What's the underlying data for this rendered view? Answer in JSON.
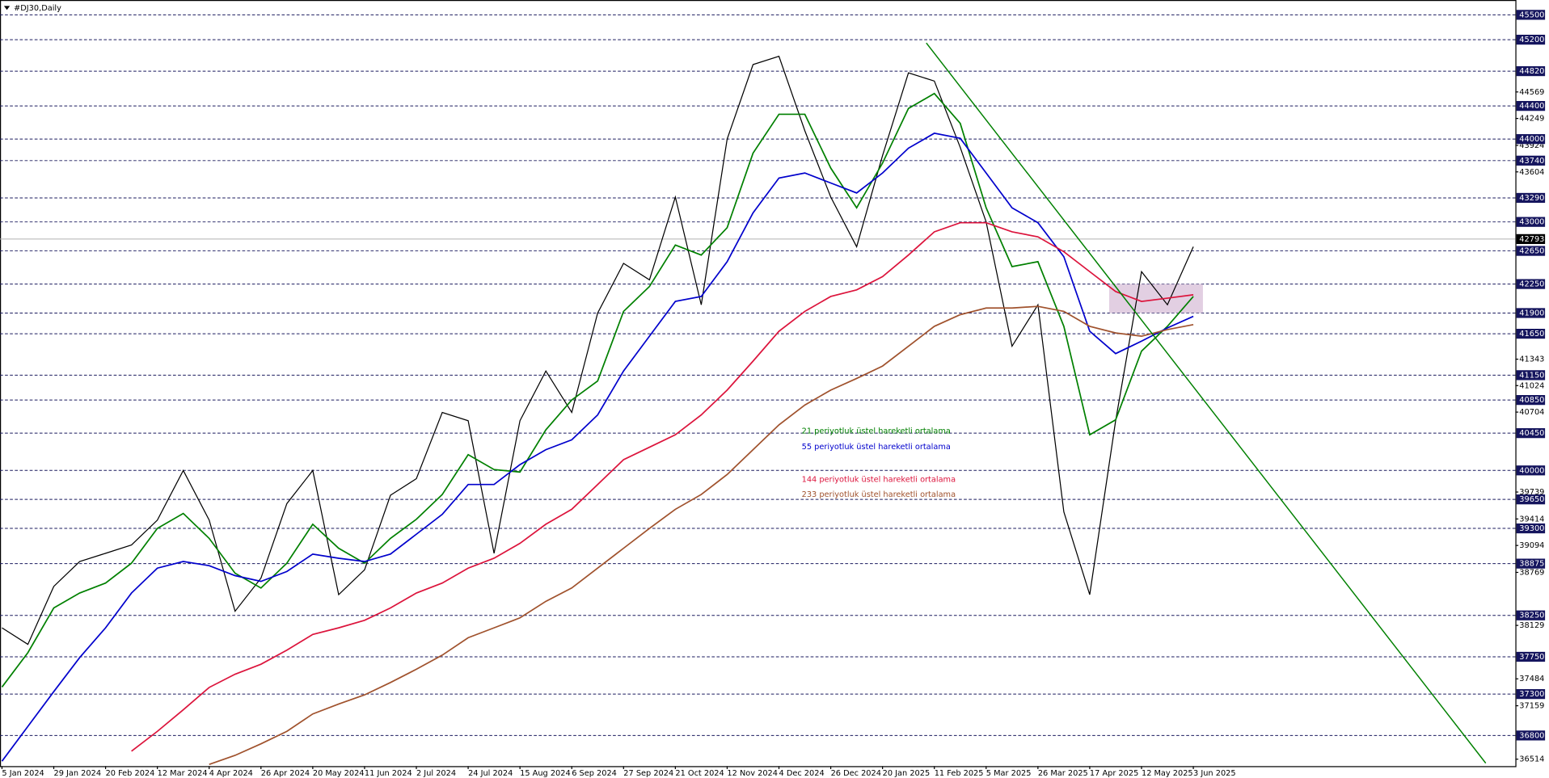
{
  "chart_data": {
    "type": "line",
    "title": "#DJ30,Daily",
    "categories": [
      "5 Jan 2024",
      null,
      "29 Jan 2024",
      null,
      "20 Feb 2024",
      null,
      "12 Mar 2024",
      null,
      "4 Apr 2024",
      null,
      "26 Apr 2024",
      null,
      "20 May 2024",
      null,
      "11 Jun 2024",
      null,
      "2 Jul 2024",
      null,
      "24 Jul 2024",
      null,
      "15 Aug 2024",
      null,
      "6 Sep 2024",
      null,
      "27 Sep 2024",
      null,
      "21 Oct 2024",
      null,
      "12 Nov 2024",
      null,
      "4 Dec 2024",
      null,
      "26 Dec 2024",
      null,
      "20 Jan 2025",
      null,
      "11 Feb 2025",
      null,
      "5 Mar 2025",
      null,
      "26 Mar 2025",
      null,
      "17 Apr 2025",
      null,
      "12 May 2025",
      null,
      "3 Jun 2025"
    ],
    "series": [
      {
        "color": "#000000",
        "values": [
          38100,
          37900,
          38600,
          38900,
          39000,
          39100,
          39400,
          40000,
          39400,
          38300,
          38700,
          39600,
          40000,
          38500,
          38800,
          39700,
          39900,
          40700,
          40600,
          39000,
          40600,
          41200,
          40700,
          41900,
          42500,
          42300,
          43300,
          42000,
          44000,
          44900,
          45000,
          44100,
          43300,
          42700,
          43800,
          44800,
          44700,
          43900,
          43000,
          41500,
          42000,
          39500,
          38500,
          40600,
          42400,
          42000,
          42700
        ]
      },
      {
        "name": "21 periyotluk üstel hareketli ortalama",
        "color": "#008000",
        "values": [
          37385,
          37800,
          38340,
          38520,
          38640,
          38880,
          39300,
          39480,
          39180,
          38760,
          38580,
          38880,
          39350,
          39060,
          38880,
          39180,
          39410,
          39710,
          40190,
          40010,
          39980,
          40490,
          40850,
          41080,
          41920,
          42220,
          42720,
          42600,
          42930,
          43830,
          44300,
          44300,
          43650,
          43170,
          43710,
          44370,
          44550,
          44190,
          43170,
          42460,
          42520,
          41740,
          40430,
          40610,
          41440,
          41740,
          42100
        ]
      },
      {
        "name": "55 periyotluk üstel hareketli ortalama",
        "color": "#0000cc",
        "values": [
          36490,
          36910,
          37330,
          37740,
          38100,
          38520,
          38820,
          38900,
          38850,
          38730,
          38660,
          38780,
          38990,
          38940,
          38900,
          38990,
          39230,
          39470,
          39830,
          39830,
          40070,
          40250,
          40370,
          40670,
          41200,
          41620,
          42040,
          42100,
          42520,
          43110,
          43530,
          43590,
          43470,
          43350,
          43590,
          43890,
          44070,
          44010,
          43590,
          43170,
          42990,
          42580,
          41680,
          41410,
          41560,
          41720,
          41860
        ]
      },
      {
        "name": "144 periyotluk üstel hareketli ortalama",
        "color": "#dc143c",
        "values": [
          null,
          null,
          null,
          null,
          null,
          36610,
          36850,
          37110,
          37380,
          37540,
          37660,
          37830,
          38020,
          38100,
          38190,
          38340,
          38520,
          38640,
          38820,
          38940,
          39120,
          39350,
          39530,
          39830,
          40130,
          40280,
          40430,
          40670,
          40970,
          41320,
          41680,
          41920,
          42100,
          42180,
          42340,
          42600,
          42880,
          42990,
          42990,
          42880,
          42820,
          42640,
          42400,
          42160,
          42040,
          42080,
          42120
        ]
      },
      {
        "name": "233 periyotluk üstel hareketli ortalama",
        "color": "#a0522d",
        "values": [
          null,
          null,
          null,
          null,
          null,
          null,
          null,
          null,
          36450,
          36560,
          36700,
          36850,
          37060,
          37180,
          37290,
          37440,
          37600,
          37770,
          37980,
          38100,
          38220,
          38420,
          38580,
          38820,
          39060,
          39300,
          39530,
          39710,
          39950,
          40250,
          40550,
          40790,
          40970,
          41110,
          41260,
          41500,
          41740,
          41880,
          41960,
          41960,
          41980,
          41920,
          41740,
          41660,
          41620,
          41700,
          41760
        ]
      }
    ],
    "ylim": [
      36430,
      45679
    ],
    "levels": [
      45500,
      45200,
      44820,
      44400,
      44000,
      43740,
      43290,
      43000,
      42650,
      42250,
      41900,
      41650,
      41150,
      40850,
      40450,
      40000,
      39650,
      39300,
      38875,
      38250,
      37750,
      37300,
      36800
    ],
    "yticks": [
      44569,
      44249,
      43924,
      43604,
      41343,
      41024,
      40704,
      39739,
      39414,
      39094,
      38769,
      38129,
      37484,
      37159,
      36514
    ],
    "current_price": 42793,
    "trendline": {
      "x": [
        35.69,
        57.29
      ],
      "y": [
        45160,
        36466
      ],
      "color": "#008000"
    },
    "zone": {
      "x": [
        42.75,
        46.37
      ],
      "y": [
        41900,
        42250
      ],
      "color": "#d8bfd8"
    }
  }
}
